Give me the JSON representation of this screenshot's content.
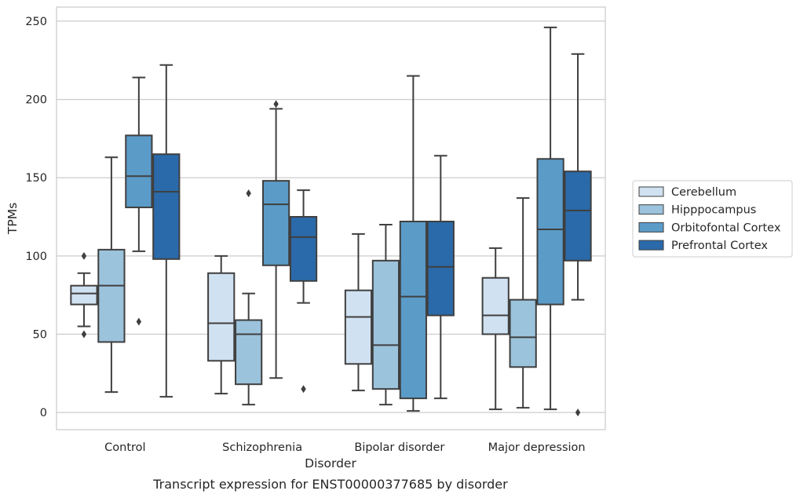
{
  "chart_data": {
    "type": "box",
    "caption": "Transcript expression for ENST00000377685 by disorder",
    "xlabel": "Disorder",
    "ylabel": "TPMs",
    "ylim": [
      -11,
      259
    ],
    "yticks": [
      0,
      50,
      100,
      150,
      200,
      250
    ],
    "grid": true,
    "legend_position": "right",
    "categories": [
      "Control",
      "Schizophrenia",
      "Bipolar disorder",
      "Major depression"
    ],
    "series": [
      {
        "name": "Cerebellum",
        "color": "#d0e1f1",
        "boxes": [
          {
            "whisker_low": 55,
            "q1": 69,
            "median": 76,
            "q3": 81,
            "whisker_high": 89,
            "outliers": [
              100,
              50
            ]
          },
          {
            "whisker_low": 12,
            "q1": 33,
            "median": 57,
            "q3": 89,
            "whisker_high": 100,
            "outliers": []
          },
          {
            "whisker_low": 14,
            "q1": 31,
            "median": 61,
            "q3": 78,
            "whisker_high": 114,
            "outliers": []
          },
          {
            "whisker_low": 2,
            "q1": 50,
            "median": 62,
            "q3": 86,
            "whisker_high": 105,
            "outliers": []
          }
        ]
      },
      {
        "name": "Hipppocampus",
        "color": "#9cc3dc",
        "boxes": [
          {
            "whisker_low": 13,
            "q1": 45,
            "median": 81,
            "q3": 104,
            "whisker_high": 163,
            "outliers": []
          },
          {
            "whisker_low": 5,
            "q1": 18,
            "median": 50,
            "q3": 59,
            "whisker_high": 76,
            "outliers": [
              140
            ]
          },
          {
            "whisker_low": 5,
            "q1": 15,
            "median": 43,
            "q3": 97,
            "whisker_high": 120,
            "outliers": []
          },
          {
            "whisker_low": 3,
            "q1": 29,
            "median": 48,
            "q3": 72,
            "whisker_high": 137,
            "outliers": []
          }
        ]
      },
      {
        "name": "Orbitofontal Cortex",
        "color": "#5b9bc8",
        "boxes": [
          {
            "whisker_low": 103,
            "q1": 131,
            "median": 151,
            "q3": 177,
            "whisker_high": 214,
            "outliers": [
              58
            ]
          },
          {
            "whisker_low": 22,
            "q1": 94,
            "median": 133,
            "q3": 148,
            "whisker_high": 194,
            "outliers": [
              197
            ]
          },
          {
            "whisker_low": 1,
            "q1": 9,
            "median": 74,
            "q3": 122,
            "whisker_high": 215,
            "outliers": []
          },
          {
            "whisker_low": 2,
            "q1": 69,
            "median": 117,
            "q3": 162,
            "whisker_high": 246,
            "outliers": []
          }
        ]
      },
      {
        "name": "Prefrontal Cortex",
        "color": "#2a6aaa",
        "boxes": [
          {
            "whisker_low": 10,
            "q1": 98,
            "median": 141,
            "q3": 165,
            "whisker_high": 222,
            "outliers": []
          },
          {
            "whisker_low": 70,
            "q1": 84,
            "median": 112,
            "q3": 125,
            "whisker_high": 142,
            "outliers": [
              15
            ]
          },
          {
            "whisker_low": 9,
            "q1": 62,
            "median": 93,
            "q3": 122,
            "whisker_high": 164,
            "outliers": []
          },
          {
            "whisker_low": 72,
            "q1": 97,
            "median": 129,
            "q3": 154,
            "whisker_high": 229,
            "outliers": [
              0
            ]
          }
        ]
      }
    ]
  }
}
